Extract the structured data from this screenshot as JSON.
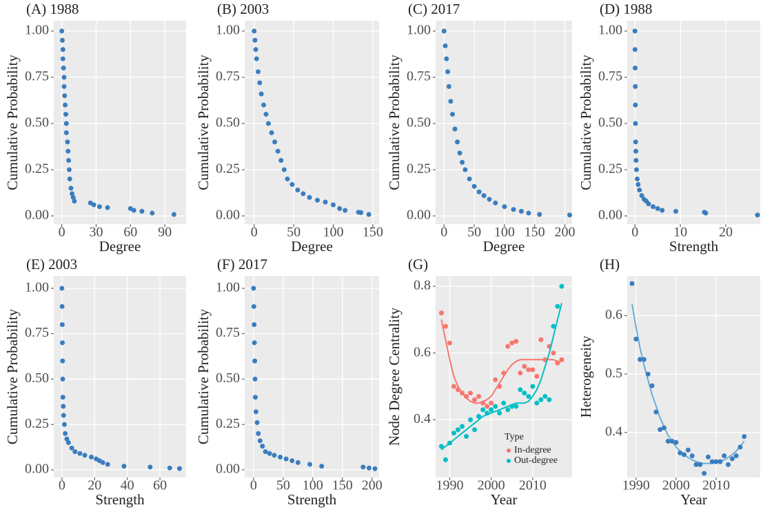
{
  "chart_data": [
    {
      "type": "scatter",
      "title": "(A) 1988",
      "xlabel": "Degree",
      "ylabel": "Cumulative Probability",
      "color": "#3A7DBF",
      "x": [
        0,
        0.5,
        1,
        1,
        1.5,
        2,
        2,
        2.5,
        3,
        3.5,
        4,
        4,
        5,
        5.5,
        6,
        6.5,
        7,
        8,
        9,
        10,
        11,
        25,
        28,
        33,
        40,
        60,
        63,
        70,
        79,
        98
      ],
      "values": [
        1,
        0.95,
        0.9,
        0.85,
        0.8,
        0.75,
        0.7,
        0.65,
        0.6,
        0.55,
        0.5,
        0.45,
        0.4,
        0.35,
        0.3,
        0.25,
        0.2,
        0.15,
        0.12,
        0.1,
        0.08,
        0.07,
        0.06,
        0.05,
        0.045,
        0.04,
        0.03,
        0.025,
        0.015,
        0.008
      ],
      "xlim": [
        -7,
        108.6
      ],
      "ylim": [
        -0.045,
        1.056
      ],
      "xticks": [
        0,
        30,
        60,
        90
      ],
      "yticks": [
        {
          "value": 0,
          "label": "0.00"
        },
        {
          "value": 0.25,
          "label": "0.25"
        },
        {
          "value": 0.5,
          "label": "0.50"
        },
        {
          "value": 0.75,
          "label": "0.75"
        },
        {
          "value": 1,
          "label": "1.00"
        }
      ]
    },
    {
      "type": "scatter",
      "title": "(B) 2003",
      "xlabel": "Degree",
      "ylabel": "Cumulative Probability",
      "color": "#3A7DBF",
      "x": [
        0,
        1,
        2,
        3,
        5,
        7,
        9,
        12,
        15,
        18,
        22,
        26,
        30,
        34,
        38,
        42,
        48,
        55,
        62,
        70,
        80,
        90,
        100,
        108,
        115,
        132,
        135,
        145
      ],
      "values": [
        1,
        0.95,
        0.9,
        0.85,
        0.78,
        0.72,
        0.66,
        0.6,
        0.55,
        0.5,
        0.45,
        0.4,
        0.35,
        0.3,
        0.25,
        0.2,
        0.17,
        0.14,
        0.12,
        0.1,
        0.085,
        0.075,
        0.06,
        0.04,
        0.03,
        0.02,
        0.018,
        0.008
      ],
      "xlim": [
        -12,
        158
      ],
      "ylim": [
        -0.045,
        1.056
      ],
      "xticks": [
        0,
        50,
        100,
        150
      ],
      "yticks": [
        {
          "value": 0,
          "label": "0.00"
        },
        {
          "value": 0.25,
          "label": "0.25"
        },
        {
          "value": 0.5,
          "label": "0.50"
        },
        {
          "value": 0.75,
          "label": "0.75"
        },
        {
          "value": 1,
          "label": "1.00"
        }
      ]
    },
    {
      "type": "scatter",
      "title": "(C) 2017",
      "xlabel": "Degree",
      "ylabel": "Cumulative Probability",
      "color": "#3A7DBF",
      "x": [
        0,
        2,
        4,
        6,
        8,
        11,
        14,
        18,
        22,
        26,
        30,
        35,
        42,
        50,
        58,
        66,
        75,
        85,
        100,
        115,
        128,
        140,
        158,
        208
      ],
      "values": [
        1,
        0.92,
        0.85,
        0.78,
        0.7,
        0.62,
        0.55,
        0.47,
        0.4,
        0.34,
        0.29,
        0.25,
        0.2,
        0.16,
        0.13,
        0.11,
        0.09,
        0.07,
        0.05,
        0.035,
        0.025,
        0.015,
        0.008,
        0.005
      ],
      "xlim": [
        -14,
        212
      ],
      "ylim": [
        -0.045,
        1.056
      ],
      "xticks": [
        0,
        50,
        100,
        150,
        200
      ],
      "yticks": [
        {
          "value": 0,
          "label": "0.00"
        },
        {
          "value": 0.25,
          "label": "0.25"
        },
        {
          "value": 0.5,
          "label": "0.50"
        },
        {
          "value": 0.75,
          "label": "0.75"
        },
        {
          "value": 1,
          "label": "1.00"
        }
      ]
    },
    {
      "type": "scatter",
      "title": "(D) 1988",
      "xlabel": "Strength",
      "ylabel": "Cumulative Probability",
      "color": "#3A7DBF",
      "x": [
        0,
        0.02,
        0.05,
        0.08,
        0.1,
        0.12,
        0.15,
        0.2,
        0.25,
        0.35,
        0.5,
        0.7,
        1,
        1.5,
        2,
        2.5,
        3,
        4,
        5,
        6,
        9,
        15.3,
        15.6,
        27
      ],
      "values": [
        1,
        0.9,
        0.8,
        0.7,
        0.6,
        0.5,
        0.4,
        0.35,
        0.3,
        0.25,
        0.2,
        0.17,
        0.14,
        0.11,
        0.09,
        0.08,
        0.065,
        0.05,
        0.04,
        0.03,
        0.025,
        0.02,
        0.015,
        0.005
      ],
      "xlim": [
        -1.7,
        27.6
      ],
      "ylim": [
        -0.045,
        1.056
      ],
      "xticks": [
        0,
        10,
        20
      ],
      "yticks": [
        {
          "value": 0,
          "label": "0.00"
        },
        {
          "value": 0.25,
          "label": "0.25"
        },
        {
          "value": 0.5,
          "label": "0.50"
        },
        {
          "value": 0.75,
          "label": "0.75"
        },
        {
          "value": 1,
          "label": "1.00"
        }
      ]
    },
    {
      "type": "scatter",
      "title": "(E) 2003",
      "xlabel": "Strength",
      "ylabel": "Cumulative Probability",
      "color": "#3A7DBF",
      "x": [
        0,
        0.1,
        0.2,
        0.3,
        0.4,
        0.5,
        0.6,
        0.8,
        1,
        1.5,
        2,
        3,
        4,
        6,
        8,
        11,
        14,
        18,
        21,
        23,
        25,
        28,
        38,
        54,
        66,
        72
      ],
      "values": [
        1,
        0.9,
        0.8,
        0.7,
        0.6,
        0.5,
        0.4,
        0.35,
        0.3,
        0.25,
        0.2,
        0.17,
        0.15,
        0.12,
        0.1,
        0.09,
        0.08,
        0.07,
        0.06,
        0.05,
        0.04,
        0.03,
        0.02,
        0.015,
        0.01,
        0.007
      ],
      "xlim": [
        -5,
        76
      ],
      "ylim": [
        -0.042,
        1.068
      ],
      "xticks": [
        0,
        20,
        40,
        60
      ],
      "yticks": [
        {
          "value": 0,
          "label": "0.00"
        },
        {
          "value": 0.25,
          "label": "0.25"
        },
        {
          "value": 0.5,
          "label": "0.50"
        },
        {
          "value": 0.75,
          "label": "0.75"
        },
        {
          "value": 1,
          "label": "1.00"
        }
      ]
    },
    {
      "type": "scatter",
      "title": "(F) 2017",
      "xlabel": "Strength",
      "ylabel": "Cumulative Probability",
      "color": "#3A7DBF",
      "x": [
        0,
        0.5,
        1,
        1.5,
        2,
        2.5,
        3,
        4,
        6,
        8,
        11,
        15,
        20,
        27,
        35,
        45,
        55,
        65,
        75,
        95,
        115,
        185,
        195,
        205
      ],
      "values": [
        1,
        0.9,
        0.8,
        0.7,
        0.6,
        0.5,
        0.4,
        0.32,
        0.26,
        0.2,
        0.16,
        0.13,
        0.1,
        0.09,
        0.08,
        0.07,
        0.06,
        0.05,
        0.04,
        0.03,
        0.02,
        0.015,
        0.01,
        0.006
      ],
      "xlim": [
        -15,
        212
      ],
      "ylim": [
        -0.042,
        1.068
      ],
      "xticks": [
        0,
        50,
        100,
        150,
        200
      ],
      "yticks": [
        {
          "value": 0,
          "label": "0.00"
        },
        {
          "value": 0.25,
          "label": "0.25"
        },
        {
          "value": 0.5,
          "label": "0.50"
        },
        {
          "value": 0.75,
          "label": "0.75"
        },
        {
          "value": 1,
          "label": "1.00"
        }
      ]
    },
    {
      "type": "scatter",
      "title": "(G)",
      "xlabel": "Year",
      "ylabel": "Node Degree Centrality",
      "legend_title": "Type",
      "x": [
        1988,
        1989,
        1990,
        1991,
        1992,
        1993,
        1994,
        1995,
        1996,
        1997,
        1998,
        1999,
        2000,
        2001,
        2002,
        2003,
        2004,
        2005,
        2006,
        2007,
        2008,
        2009,
        2010,
        2011,
        2012,
        2013,
        2014,
        2015,
        2016,
        2017
      ],
      "series": [
        {
          "name": "In-degree",
          "color": "#F8766D",
          "values": [
            0.72,
            0.68,
            0.63,
            0.5,
            0.49,
            0.48,
            0.47,
            0.48,
            0.46,
            0.47,
            0.45,
            0.44,
            0.45,
            0.52,
            0.5,
            0.54,
            0.62,
            0.63,
            0.635,
            0.54,
            0.56,
            0.55,
            0.55,
            0.53,
            0.64,
            0.58,
            0.62,
            0.6,
            0.57,
            0.58
          ],
          "fit": [
            0.7,
            0.64,
            0.58,
            0.53,
            0.5,
            0.48,
            0.465,
            0.455,
            0.45,
            0.45,
            0.455,
            0.46,
            0.47,
            0.49,
            0.51,
            0.53,
            0.55,
            0.565,
            0.575,
            0.58,
            0.58,
            0.58,
            0.58,
            0.58,
            0.58,
            0.58,
            0.58,
            0.58,
            0.575,
            0.575
          ]
        },
        {
          "name": "Out-degree",
          "color": "#00BFC4",
          "values": [
            0.32,
            0.28,
            0.33,
            0.36,
            0.37,
            0.38,
            0.35,
            0.4,
            0.37,
            0.41,
            0.43,
            0.42,
            0.43,
            0.44,
            0.42,
            0.45,
            0.43,
            0.44,
            0.44,
            0.49,
            0.48,
            0.47,
            0.5,
            0.45,
            0.46,
            0.47,
            0.46,
            0.68,
            0.74,
            0.8
          ],
          "fit": [
            0.31,
            0.32,
            0.33,
            0.34,
            0.35,
            0.36,
            0.37,
            0.38,
            0.39,
            0.4,
            0.41,
            0.415,
            0.42,
            0.425,
            0.43,
            0.435,
            0.44,
            0.445,
            0.45,
            0.45,
            0.45,
            0.455,
            0.47,
            0.49,
            0.52,
            0.56,
            0.6,
            0.65,
            0.7,
            0.75
          ]
        }
      ],
      "xlim": [
        1986.6,
        2019.5
      ],
      "ylim": [
        0.227,
        0.831
      ],
      "xticks": [
        1990,
        2000,
        2010
      ],
      "yticks": [
        0.4,
        0.6,
        0.8
      ]
    },
    {
      "type": "scatter",
      "title": "(H)",
      "xlabel": "Year",
      "ylabel": "Heterogeneity",
      "color": "#3A7DBF",
      "fit_color": "#6BAED6",
      "x": [
        1989,
        1990,
        1991,
        1992,
        1993,
        1994,
        1995,
        1996,
        1997,
        1998,
        1999,
        2000,
        2001,
        2002,
        2003,
        2004,
        2005,
        2006,
        2007,
        2008,
        2009,
        2010,
        2011,
        2012,
        2013,
        2014,
        2015,
        2016,
        2017
      ],
      "values": [
        0.655,
        0.56,
        0.525,
        0.525,
        0.5,
        0.48,
        0.435,
        0.405,
        0.408,
        0.385,
        0.385,
        0.383,
        0.365,
        0.362,
        0.37,
        0.36,
        0.345,
        0.345,
        0.33,
        0.358,
        0.35,
        0.35,
        0.35,
        0.36,
        0.345,
        0.355,
        0.36,
        0.375,
        0.393
      ],
      "fit": [
        0.62,
        0.58,
        0.545,
        0.515,
        0.49,
        0.465,
        0.445,
        0.425,
        0.41,
        0.395,
        0.385,
        0.375,
        0.368,
        0.362,
        0.357,
        0.353,
        0.35,
        0.348,
        0.347,
        0.347,
        0.347,
        0.348,
        0.35,
        0.353,
        0.357,
        0.362,
        0.368,
        0.376,
        0.385
      ],
      "xlim": [
        1987.8,
        2021
      ],
      "ylim": [
        0.323,
        0.668
      ],
      "xticks": [
        1990,
        2000,
        2010
      ],
      "yticks": [
        0.4,
        0.5,
        0.6
      ]
    }
  ]
}
